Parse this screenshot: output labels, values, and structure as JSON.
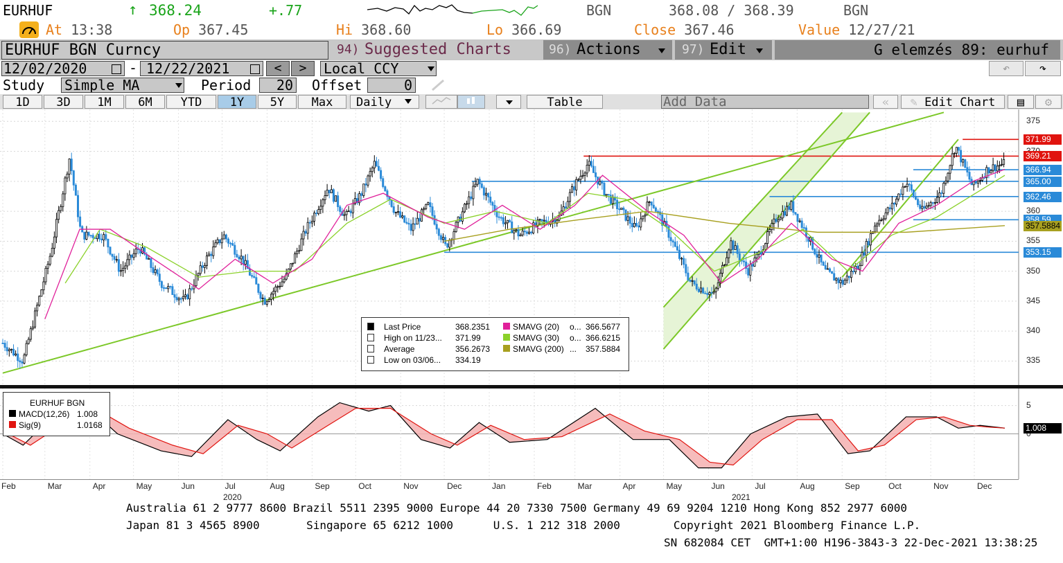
{
  "header": {
    "ticker": "EURHUF",
    "arrow": "↑",
    "last": "368.24",
    "change": "+.77",
    "source": "BGN",
    "bid_ask": "368.08 / 368.39",
    "source2": "BGN",
    "at_label": "At",
    "at_time": "13:38",
    "op_label": "Op",
    "op_value": "367.45",
    "hi_label": "Hi",
    "hi_value": "368.60",
    "lo_label": "Lo",
    "lo_value": "366.69",
    "close_label": "Close",
    "close_value": "367.46",
    "value_label": "Value",
    "value_date": "12/27/21"
  },
  "menu": {
    "security": "EURHUF BGN Curncy",
    "suggested_num": "94)",
    "suggested": "Suggested Charts",
    "actions_num": "96)",
    "actions": "Actions",
    "edit_num": "97)",
    "edit": "Edit",
    "chart_name": "G elemzés 89: eurhuf"
  },
  "range": {
    "start": "12/02/2020",
    "dash": "-",
    "end": "12/22/2021",
    "prev": "<",
    "next": ">",
    "currency": "Local CCY"
  },
  "study": {
    "label": "Study",
    "type": "Simple MA",
    "period_label": "Period",
    "period": "20",
    "offset_label": "Offset",
    "offset": "0"
  },
  "periods": {
    "buttons": [
      "1D",
      "3D",
      "1M",
      "6M",
      "YTD",
      "1Y",
      "5Y",
      "Max"
    ],
    "selected": "1Y",
    "frequency": "Daily",
    "table": "Table",
    "add_data": "Add Data",
    "edit_chart": "Edit Chart"
  },
  "chart_data": [
    {
      "type": "candlestick",
      "title": "",
      "y_ticks": [
        375,
        370,
        365,
        360,
        355,
        350,
        345,
        340,
        335
      ],
      "ylim": [
        331,
        377
      ],
      "x_ticks": [
        "Feb",
        "Mar",
        "Apr",
        "May",
        "Jun",
        "Jul",
        "Aug",
        "Sep",
        "Oct",
        "Nov",
        "Dec",
        "Jan",
        "Feb",
        "Mar",
        "Apr",
        "May",
        "Jun",
        "Jul",
        "Aug",
        "Sep",
        "Oct",
        "Nov",
        "Dec"
      ],
      "year_labels": [
        "2020",
        "2021"
      ],
      "price_tags": [
        {
          "value": "371.99",
          "color": "#e0140f"
        },
        {
          "value": "369.21",
          "color": "#e0140f"
        },
        {
          "value": "366.94",
          "color": "#2a8ad8"
        },
        {
          "value": "365.00",
          "color": "#2a8ad8"
        },
        {
          "value": "362.46",
          "color": "#2a8ad8"
        },
        {
          "value": "358.59",
          "color": "#2a8ad8"
        },
        {
          "value": "357.5884",
          "color": "#a8a020"
        },
        {
          "value": "353.15",
          "color": "#2a8ad8"
        }
      ],
      "price_path": [
        [
          "2020-02-01",
          338
        ],
        [
          "2020-02-15",
          335
        ],
        [
          "2020-03-05",
          353
        ],
        [
          "2020-03-18",
          369
        ],
        [
          "2020-03-26",
          356
        ],
        [
          "2020-04-10",
          356
        ],
        [
          "2020-04-22",
          350
        ],
        [
          "2020-05-05",
          354
        ],
        [
          "2020-05-20",
          348
        ],
        [
          "2020-06-05",
          345
        ],
        [
          "2020-06-20",
          352
        ],
        [
          "2020-07-02",
          356
        ],
        [
          "2020-07-15",
          352
        ],
        [
          "2020-07-30",
          345
        ],
        [
          "2020-08-14",
          349
        ],
        [
          "2020-08-28",
          357
        ],
        [
          "2020-09-12",
          364
        ],
        [
          "2020-09-24",
          359
        ],
        [
          "2020-10-05",
          363
        ],
        [
          "2020-10-14",
          368
        ],
        [
          "2020-10-28",
          360
        ],
        [
          "2020-11-08",
          357
        ],
        [
          "2020-11-20",
          361
        ],
        [
          "2020-12-02",
          354
        ],
        [
          "2020-12-16",
          361
        ],
        [
          "2020-12-24",
          365
        ],
        [
          "2021-01-08",
          359
        ],
        [
          "2021-01-22",
          356
        ],
        [
          "2021-02-05",
          358
        ],
        [
          "2021-02-18",
          359
        ],
        [
          "2021-02-28",
          364
        ],
        [
          "2021-03-10",
          368
        ],
        [
          "2021-03-22",
          363
        ],
        [
          "2021-04-02",
          360
        ],
        [
          "2021-04-12",
          357
        ],
        [
          "2021-04-22",
          362
        ],
        [
          "2021-05-05",
          356
        ],
        [
          "2021-05-20",
          348
        ],
        [
          "2021-06-05",
          346
        ],
        [
          "2021-06-16",
          355
        ],
        [
          "2021-06-28",
          350
        ],
        [
          "2021-07-06",
          353
        ],
        [
          "2021-07-18",
          359
        ],
        [
          "2021-07-28",
          361
        ],
        [
          "2021-08-08",
          356
        ],
        [
          "2021-08-20",
          350
        ],
        [
          "2021-09-01",
          348
        ],
        [
          "2021-09-12",
          351
        ],
        [
          "2021-09-24",
          358
        ],
        [
          "2021-10-06",
          361
        ],
        [
          "2021-10-15",
          365
        ],
        [
          "2021-10-26",
          360
        ],
        [
          "2021-11-08",
          363
        ],
        [
          "2021-11-18",
          371
        ],
        [
          "2021-11-30",
          364
        ],
        [
          "2021-12-10",
          367
        ],
        [
          "2021-12-22",
          368
        ]
      ],
      "sma20_path": [
        [
          "2020-03-01",
          342
        ],
        [
          "2020-03-25",
          357
        ],
        [
          "2020-04-15",
          357
        ],
        [
          "2020-05-15",
          352
        ],
        [
          "2020-06-15",
          347
        ],
        [
          "2020-07-10",
          352
        ],
        [
          "2020-08-05",
          348
        ],
        [
          "2020-09-01",
          352
        ],
        [
          "2020-09-25",
          361
        ],
        [
          "2020-10-20",
          363
        ],
        [
          "2020-11-20",
          359
        ],
        [
          "2020-12-15",
          357
        ],
        [
          "2021-01-10",
          361
        ],
        [
          "2021-02-05",
          357
        ],
        [
          "2021-03-01",
          361
        ],
        [
          "2021-03-20",
          366
        ],
        [
          "2021-04-20",
          360
        ],
        [
          "2021-05-15",
          356
        ],
        [
          "2021-06-10",
          348
        ],
        [
          "2021-07-05",
          352
        ],
        [
          "2021-07-28",
          358
        ],
        [
          "2021-08-25",
          352
        ],
        [
          "2021-09-15",
          350
        ],
        [
          "2021-10-10",
          358
        ],
        [
          "2021-11-05",
          361
        ],
        [
          "2021-11-30",
          365
        ],
        [
          "2021-12-22",
          367
        ]
      ],
      "sma30_path": [
        [
          "2020-03-15",
          348
        ],
        [
          "2020-04-08",
          357
        ],
        [
          "2020-05-10",
          354
        ],
        [
          "2020-06-15",
          349
        ],
        [
          "2020-07-20",
          350
        ],
        [
          "2020-08-20",
          350
        ],
        [
          "2020-09-25",
          358
        ],
        [
          "2020-10-25",
          362
        ],
        [
          "2020-12-01",
          358
        ],
        [
          "2021-01-05",
          360
        ],
        [
          "2021-02-10",
          358
        ],
        [
          "2021-03-10",
          363
        ],
        [
          "2021-04-05",
          362
        ],
        [
          "2021-05-05",
          357
        ],
        [
          "2021-06-05",
          350
        ],
        [
          "2021-07-05",
          353
        ],
        [
          "2021-08-05",
          357
        ],
        [
          "2021-09-05",
          350
        ],
        [
          "2021-10-05",
          356
        ],
        [
          "2021-11-05",
          359
        ],
        [
          "2021-12-22",
          366
        ]
      ],
      "sma200_path": [
        [
          "2020-12-01",
          355
        ],
        [
          "2021-01-15",
          357
        ],
        [
          "2021-03-01",
          358.5
        ],
        [
          "2021-04-20",
          360
        ],
        [
          "2021-06-15",
          358
        ],
        [
          "2021-08-15",
          356.5
        ],
        [
          "2021-10-15",
          356.5
        ],
        [
          "2021-12-22",
          357.6
        ]
      ],
      "hlines": [
        {
          "value": 369.21,
          "from": "2021-03-07",
          "color": "#e0140f"
        },
        {
          "value": 371.99,
          "from": "2021-11-23",
          "color": "#e0140f"
        },
        {
          "value": 366.94,
          "from": "2021-10-20",
          "color": "#2a8ad8"
        },
        {
          "value": 365.0,
          "from": "2020-12-20",
          "color": "#2a8ad8"
        },
        {
          "value": 362.46,
          "from": "2021-07-13",
          "color": "#2a8ad8"
        },
        {
          "value": 358.59,
          "from": "2021-10-20",
          "color": "#2a8ad8"
        },
        {
          "value": 353.15,
          "from": "2020-12-01",
          "color": "#2a8ad8"
        }
      ],
      "trendlines": [
        {
          "from": [
            "2020-02-01",
            333
          ],
          "to": [
            "2021-11-10",
            376.5
          ]
        },
        {
          "from": [
            "2021-05-01",
            344
          ],
          "to": [
            "2021-09-01",
            376.5
          ]
        },
        {
          "from": [
            "2021-05-01",
            337
          ],
          "to": [
            "2021-09-20",
            376.5
          ]
        },
        {
          "from": [
            "2021-09-01",
            349
          ],
          "to": [
            "2021-11-20",
            372
          ]
        }
      ],
      "legend": {
        "rows": [
          {
            "color": "#000000",
            "name": "Last Price",
            "value": "368.2351"
          },
          {
            "color": "",
            "name": "High on 11/23...",
            "value": "371.99"
          },
          {
            "color": "",
            "name": "Average",
            "value": "356.2673"
          },
          {
            "color": "",
            "name": "Low on 03/06...",
            "value": "334.19"
          }
        ],
        "rows2": [
          {
            "color": "#e0209a",
            "name": "SMAVG (20)",
            "dots": "o...",
            "value": "366.5677"
          },
          {
            "color": "#8bd12a",
            "name": "SMAVG (30)",
            "dots": "o...",
            "value": "366.6215"
          },
          {
            "color": "#a8a020",
            "name": "SMAVG (200)",
            "dots": "...",
            "value": "357.5884"
          }
        ]
      }
    },
    {
      "type": "line",
      "title": "EURHUF BGN",
      "y_ticks": [
        5,
        0
      ],
      "ylim": [
        -8,
        8
      ],
      "series": [
        {
          "name": "MACD(12,26)",
          "value": "1.008",
          "color": "#000000"
        },
        {
          "name": "Sig(9)",
          "value": "1.0168",
          "color": "#e0140f"
        }
      ],
      "macd_path": [
        [
          "2020-02-01",
          0
        ],
        [
          "2020-02-15",
          -2
        ],
        [
          "2020-03-10",
          4
        ],
        [
          "2020-03-25",
          6
        ],
        [
          "2020-04-20",
          0
        ],
        [
          "2020-05-20",
          -3
        ],
        [
          "2020-06-10",
          -4
        ],
        [
          "2020-07-05",
          2.5
        ],
        [
          "2020-07-25",
          -1
        ],
        [
          "2020-08-10",
          -3
        ],
        [
          "2020-09-05",
          3
        ],
        [
          "2020-09-20",
          5.5
        ],
        [
          "2020-10-10",
          4
        ],
        [
          "2020-10-25",
          5
        ],
        [
          "2020-11-15",
          -1
        ],
        [
          "2020-12-05",
          -2.5
        ],
        [
          "2020-12-25",
          2
        ],
        [
          "2021-01-15",
          -1.5
        ],
        [
          "2021-02-10",
          -1
        ],
        [
          "2021-03-15",
          4.5
        ],
        [
          "2021-04-10",
          -1
        ],
        [
          "2021-05-05",
          -1
        ],
        [
          "2021-05-25",
          -6
        ],
        [
          "2021-06-10",
          -6
        ],
        [
          "2021-06-30",
          0
        ],
        [
          "2021-07-25",
          3
        ],
        [
          "2021-08-15",
          3.5
        ],
        [
          "2021-09-05",
          -3.5
        ],
        [
          "2021-09-20",
          -3
        ],
        [
          "2021-10-15",
          3
        ],
        [
          "2021-11-05",
          3
        ],
        [
          "2021-11-20",
          1
        ],
        [
          "2021-12-05",
          1.5
        ],
        [
          "2021-12-22",
          1.008
        ]
      ],
      "sig_path": [
        [
          "2020-02-01",
          0.5
        ],
        [
          "2020-02-20",
          -2
        ],
        [
          "2020-03-15",
          2
        ],
        [
          "2020-04-01",
          5
        ],
        [
          "2020-04-28",
          1
        ],
        [
          "2020-05-28",
          -2
        ],
        [
          "2020-06-18",
          -3.5
        ],
        [
          "2020-07-12",
          1.5
        ],
        [
          "2020-08-01",
          0
        ],
        [
          "2020-08-18",
          -2.5
        ],
        [
          "2020-09-12",
          1.5
        ],
        [
          "2020-10-01",
          4.5
        ],
        [
          "2020-10-25",
          4.5
        ],
        [
          "2020-11-22",
          0
        ],
        [
          "2020-12-10",
          -2
        ],
        [
          "2021-01-02",
          1.5
        ],
        [
          "2021-01-25",
          -1
        ],
        [
          "2021-02-20",
          -0.5
        ],
        [
          "2021-03-25",
          3.5
        ],
        [
          "2021-04-18",
          0.5
        ],
        [
          "2021-05-12",
          -1
        ],
        [
          "2021-06-02",
          -5
        ],
        [
          "2021-06-18",
          -5.5
        ],
        [
          "2021-07-08",
          -1
        ],
        [
          "2021-08-01",
          2.5
        ],
        [
          "2021-08-25",
          2.5
        ],
        [
          "2021-09-12",
          -3
        ],
        [
          "2021-09-30",
          -2
        ],
        [
          "2021-10-22",
          2.5
        ],
        [
          "2021-11-10",
          3
        ],
        [
          "2021-11-28",
          1.5
        ],
        [
          "2021-12-10",
          1.2
        ],
        [
          "2021-12-22",
          1.0168
        ]
      ]
    }
  ],
  "footer": {
    "line1": "Australia 61 2 9777 8600 Brazil 5511 2395 9000 Europe 44 20 7330 7500 Germany 49 69 9204 1210 Hong Kong 852 2977 6000",
    "line2": "Japan 81 3 4565 8900       Singapore 65 6212 1000      U.S. 1 212 318 2000        Copyright 2021 Bloomberg Finance L.P.",
    "line3": "SN 682084 CET  GMT+1:00 H196-3843-3 22-Dec-2021 13:38:25"
  }
}
